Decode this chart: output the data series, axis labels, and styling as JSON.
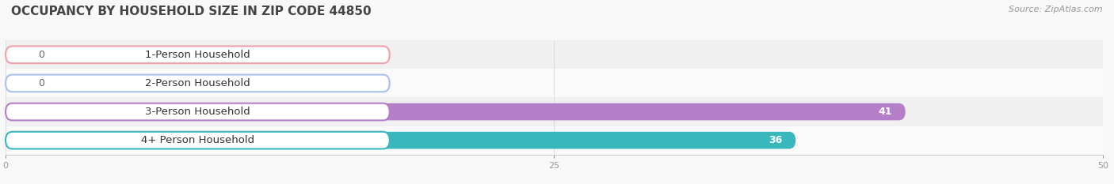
{
  "title": "OCCUPANCY BY HOUSEHOLD SIZE IN ZIP CODE 44850",
  "source": "Source: ZipAtlas.com",
  "categories": [
    "1-Person Household",
    "2-Person Household",
    "3-Person Household",
    "4+ Person Household"
  ],
  "values": [
    0,
    0,
    41,
    36
  ],
  "bar_colors": [
    "#f0a0a8",
    "#a8c0e8",
    "#b57ec8",
    "#38b8bc"
  ],
  "xlim": [
    0,
    50
  ],
  "xticks": [
    0,
    25,
    50
  ],
  "bg_row_colors": [
    "#f0f0f0",
    "#fafafa",
    "#f0f0f0",
    "#fafafa"
  ],
  "bar_value_color": "#ffffff",
  "bar_value_color_zero": "#666666",
  "title_fontsize": 11,
  "source_fontsize": 8,
  "label_fontsize": 9.5,
  "value_fontsize": 9
}
